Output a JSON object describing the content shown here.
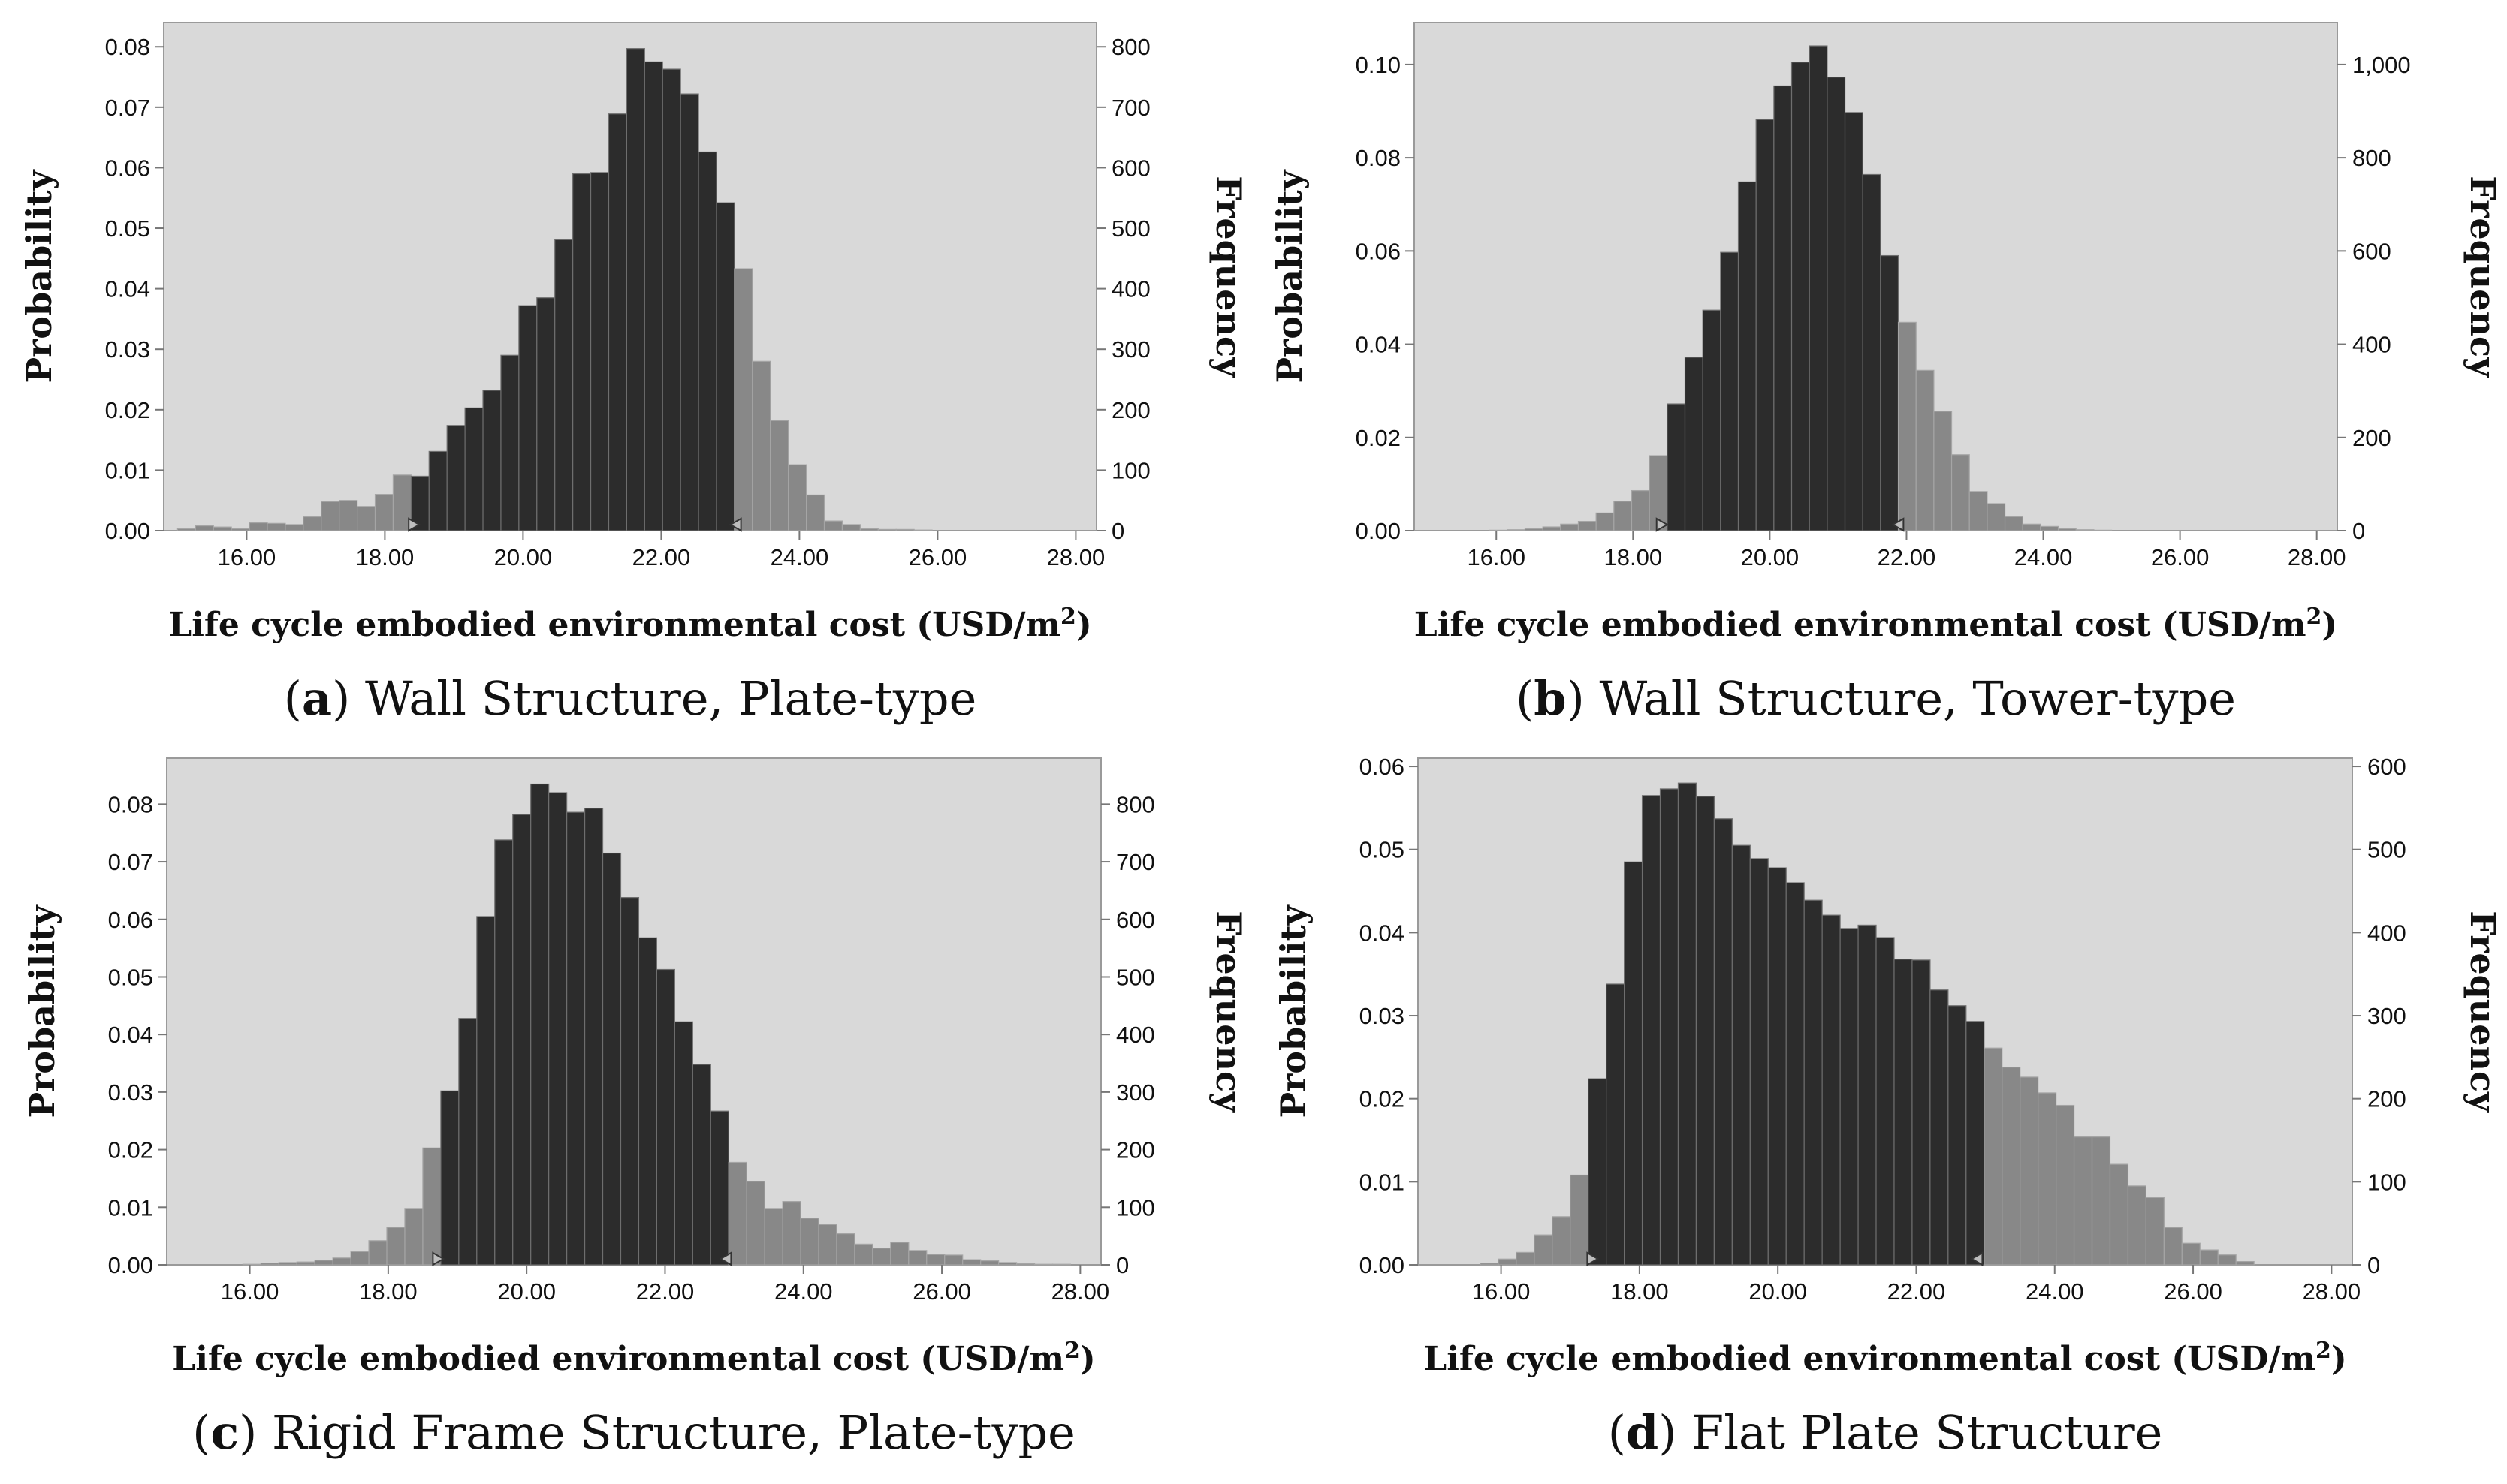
{
  "figure": {
    "description_panels": 4
  },
  "chart_data": [
    {
      "type": "bar",
      "panel_letter": "a",
      "caption": "Wall Structure, Plate-type",
      "xlabel_main": "Life cycle embodied environmental cost (USD/m",
      "xlabel_sup": "2",
      "xlabel_end": ")",
      "ylabel_left": "Probability",
      "ylabel_right": "Frequency",
      "xlim": [
        14.8,
        28.3
      ],
      "x_ticks": [
        16,
        18,
        20,
        22,
        24,
        26,
        28
      ],
      "x_tick_labels": [
        "16.00",
        "18.00",
        "20.00",
        "22.00",
        "24.00",
        "26.00",
        "28.00"
      ],
      "ylim_left": [
        0,
        0.084
      ],
      "y_ticks_left": [
        0,
        0.01,
        0.02,
        0.03,
        0.04,
        0.05,
        0.06,
        0.07,
        0.08
      ],
      "y_tick_labels_left": [
        "0.00",
        "0.01",
        "0.02",
        "0.03",
        "0.04",
        "0.05",
        "0.06",
        "0.07",
        "0.08"
      ],
      "y_ticks_right": [
        0,
        100,
        200,
        300,
        400,
        500,
        600,
        700,
        800
      ],
      "y_tick_labels_right": [
        "0",
        "100",
        "200",
        "300",
        "400",
        "500",
        "600",
        "700",
        "800"
      ],
      "right_axis_scale": 10000,
      "bin_start": 15.0,
      "bin_width": 0.26,
      "probabilities": [
        0.0003,
        0.0008,
        0.0006,
        0.0003,
        0.0013,
        0.0012,
        0.001,
        0.0023,
        0.0048,
        0.005,
        0.004,
        0.006,
        0.0092,
        0.009,
        0.0131,
        0.0174,
        0.0203,
        0.0232,
        0.029,
        0.0372,
        0.0385,
        0.0481,
        0.059,
        0.0592,
        0.0689,
        0.0797,
        0.0775,
        0.0763,
        0.0722,
        0.0626,
        0.0542,
        0.0433,
        0.028,
        0.0182,
        0.0109,
        0.0059,
        0.0016,
        0.001,
        0.0003,
        0.0002,
        0.0002,
        0.0001
      ],
      "certainty_range": [
        18.4,
        23.1
      ]
    },
    {
      "type": "bar",
      "panel_letter": "b",
      "caption": "Wall Structure, Tower-type",
      "xlabel_main": "Life cycle embodied environmental cost (USD/m",
      "xlabel_sup": "2",
      "xlabel_end": ")",
      "ylabel_left": "Probability",
      "ylabel_right": "Frequency",
      "xlim": [
        14.8,
        28.3
      ],
      "x_ticks": [
        16,
        18,
        20,
        22,
        24,
        26,
        28
      ],
      "x_tick_labels": [
        "16.00",
        "18.00",
        "20.00",
        "22.00",
        "24.00",
        "26.00",
        "28.00"
      ],
      "ylim_left": [
        0,
        0.109
      ],
      "y_ticks_left": [
        0,
        0.02,
        0.04,
        0.06,
        0.08,
        0.1
      ],
      "y_tick_labels_left": [
        "0.00",
        "0.02",
        "0.04",
        "0.06",
        "0.08",
        "0.10"
      ],
      "y_ticks_right": [
        0,
        200,
        400,
        600,
        800,
        1000
      ],
      "y_tick_labels_right": [
        "0",
        "200",
        "400",
        "600",
        "800",
        "1,000"
      ],
      "right_axis_scale": 10000,
      "bin_start": 15.9,
      "bin_width": 0.26,
      "probabilities": [
        0.0001,
        0.0002,
        0.0004,
        0.0008,
        0.0014,
        0.002,
        0.0038,
        0.0063,
        0.0086,
        0.0161,
        0.0272,
        0.0372,
        0.0473,
        0.0597,
        0.0748,
        0.0882,
        0.0954,
        0.1005,
        0.104,
        0.0973,
        0.0897,
        0.0764,
        0.059,
        0.0447,
        0.0344,
        0.0256,
        0.0163,
        0.0084,
        0.0058,
        0.003,
        0.0014,
        0.0009,
        0.0004,
        0.0002,
        0.0001
      ],
      "certainty_range": [
        18.4,
        21.9
      ]
    },
    {
      "type": "bar",
      "panel_letter": "c",
      "caption": "Rigid Frame Structure, Plate-type",
      "xlabel_main": "Life cycle embodied environmental cost (USD/m",
      "xlabel_sup": "2",
      "xlabel_end": ")",
      "ylabel_left": "Probability",
      "ylabel_right": "Frequency",
      "xlim": [
        14.8,
        28.3
      ],
      "x_ticks": [
        16,
        18,
        20,
        22,
        24,
        26,
        28
      ],
      "x_tick_labels": [
        "16.00",
        "18.00",
        "20.00",
        "22.00",
        "24.00",
        "26.00",
        "28.00"
      ],
      "ylim_left": [
        0,
        0.088
      ],
      "y_ticks_left": [
        0,
        0.01,
        0.02,
        0.03,
        0.04,
        0.05,
        0.06,
        0.07,
        0.08
      ],
      "y_tick_labels_left": [
        "0.00",
        "0.01",
        "0.02",
        "0.03",
        "0.04",
        "0.05",
        "0.06",
        "0.07",
        "0.08"
      ],
      "y_ticks_right": [
        0,
        100,
        200,
        300,
        400,
        500,
        600,
        700,
        800
      ],
      "y_tick_labels_right": [
        "0",
        "100",
        "200",
        "300",
        "400",
        "500",
        "600",
        "700",
        "800"
      ],
      "right_axis_scale": 10000,
      "bin_start": 15.9,
      "bin_width": 0.26,
      "probabilities": [
        0.0001,
        0.0003,
        0.0004,
        0.0005,
        0.0008,
        0.0012,
        0.0023,
        0.0042,
        0.0065,
        0.0098,
        0.0203,
        0.0302,
        0.0428,
        0.0605,
        0.0738,
        0.0782,
        0.0835,
        0.082,
        0.0786,
        0.0793,
        0.0715,
        0.0638,
        0.0568,
        0.0513,
        0.0422,
        0.0348,
        0.0267,
        0.0178,
        0.0145,
        0.0098,
        0.011,
        0.0081,
        0.007,
        0.0054,
        0.0036,
        0.0029,
        0.0039,
        0.0025,
        0.0018,
        0.0017,
        0.0009,
        0.0007,
        0.0004,
        0.0002,
        0.0001,
        0.0001
      ],
      "certainty_range": [
        18.7,
        22.9
      ]
    },
    {
      "type": "bar",
      "panel_letter": "d",
      "caption": "Flat Plate Structure",
      "xlabel_main": "Life cycle embodied environmental cost (USD/m",
      "xlabel_sup": "2",
      "xlabel_end": ")",
      "ylabel_left": "Probability",
      "ylabel_right": "Frequency",
      "xlim": [
        14.8,
        28.3
      ],
      "x_ticks": [
        16,
        18,
        20,
        22,
        24,
        26,
        28
      ],
      "x_tick_labels": [
        "16.00",
        "18.00",
        "20.00",
        "22.00",
        "24.00",
        "26.00",
        "28.00"
      ],
      "ylim_left": [
        0,
        0.061
      ],
      "y_ticks_left": [
        0,
        0.01,
        0.02,
        0.03,
        0.04,
        0.05,
        0.06
      ],
      "y_tick_labels_left": [
        "0.00",
        "0.01",
        "0.02",
        "0.03",
        "0.04",
        "0.05",
        "0.06"
      ],
      "y_ticks_right": [
        0,
        100,
        200,
        300,
        400,
        500,
        600
      ],
      "y_tick_labels_right": [
        "0",
        "100",
        "200",
        "300",
        "400",
        "500",
        "600"
      ],
      "right_axis_scale": 10000,
      "bin_start": 15.7,
      "bin_width": 0.26,
      "probabilities": [
        0.0002,
        0.0007,
        0.0015,
        0.0036,
        0.0058,
        0.0108,
        0.0224,
        0.0338,
        0.0485,
        0.0565,
        0.0573,
        0.058,
        0.0564,
        0.0537,
        0.0505,
        0.0489,
        0.0478,
        0.046,
        0.0439,
        0.0421,
        0.0405,
        0.0409,
        0.0394,
        0.0368,
        0.0367,
        0.0331,
        0.0312,
        0.0293,
        0.0261,
        0.0238,
        0.0226,
        0.0207,
        0.0192,
        0.0154,
        0.0154,
        0.0121,
        0.0095,
        0.0081,
        0.0045,
        0.0026,
        0.0018,
        0.0012,
        0.0004
      ],
      "certainty_range": [
        17.3,
        22.9
      ]
    }
  ]
}
